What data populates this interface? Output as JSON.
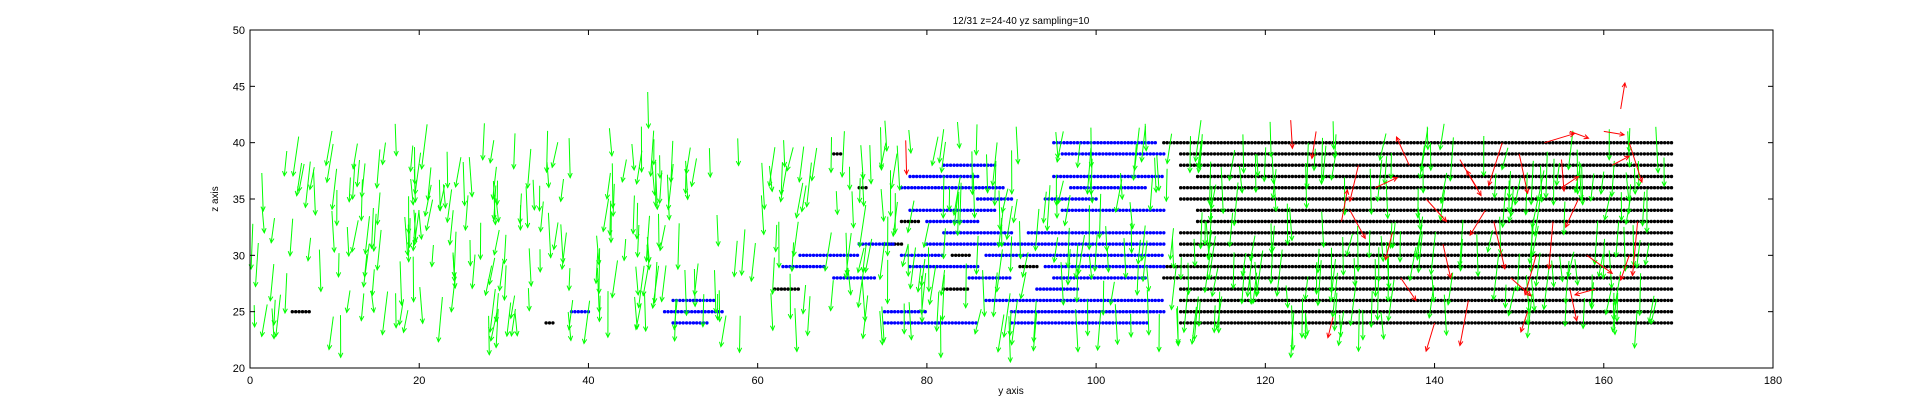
{
  "chart_data": {
    "type": "scatter",
    "subtype": "quiver",
    "title": "12/31 z=24-40 yz sampling=10",
    "xlabel": "y axis",
    "ylabel": "z axis",
    "xlim": [
      0,
      180
    ],
    "ylim": [
      20,
      50
    ],
    "xticks": [
      0,
      20,
      40,
      60,
      80,
      100,
      120,
      140,
      160,
      180
    ],
    "yticks": [
      20,
      25,
      30,
      35,
      40,
      45,
      50
    ],
    "grid": false,
    "colors": {
      "vectors": "#00ff00",
      "highlight_vectors": "#ff0000",
      "points_blue": "#0000ff",
      "points_black": "#000000"
    },
    "z_levels": [
      24,
      25,
      26,
      27,
      28,
      29,
      30,
      31,
      32,
      33,
      34,
      35,
      36,
      37,
      38,
      39,
      40
    ],
    "point_series": [
      {
        "color": "black",
        "segments": [
          {
            "z": 40,
            "y": [
              108,
              168
            ]
          },
          {
            "z": 39,
            "y": [
              110,
              168
            ]
          },
          {
            "z": 38,
            "y": [
              110,
              168
            ]
          },
          {
            "z": 37,
            "y": [
              112,
              168
            ]
          },
          {
            "z": 36,
            "y": [
              110,
              168
            ]
          },
          {
            "z": 35,
            "y": [
              110,
              168
            ]
          },
          {
            "z": 34,
            "y": [
              112,
              168
            ]
          },
          {
            "z": 33,
            "y": [
              112,
              168
            ]
          },
          {
            "z": 32,
            "y": [
              110,
              168
            ]
          },
          {
            "z": 31,
            "y": [
              110,
              168
            ]
          },
          {
            "z": 30,
            "y": [
              110,
              168
            ]
          },
          {
            "z": 29,
            "y": [
              108,
              168
            ]
          },
          {
            "z": 28,
            "y": [
              108,
              168
            ]
          },
          {
            "z": 27,
            "y": [
              110,
              168
            ]
          },
          {
            "z": 26,
            "y": [
              110,
              168
            ]
          },
          {
            "z": 25,
            "y": [
              110,
              168
            ]
          },
          {
            "z": 24,
            "y": [
              110,
              168
            ]
          },
          {
            "z": 39,
            "y": [
              69,
              70
            ]
          },
          {
            "z": 36,
            "y": [
              72,
              73
            ]
          },
          {
            "z": 33,
            "y": [
              77,
              79
            ]
          },
          {
            "z": 31,
            "y": [
              75,
              77
            ]
          },
          {
            "z": 30,
            "y": [
              83,
              85
            ]
          },
          {
            "z": 29,
            "y": [
              91,
              93
            ]
          },
          {
            "z": 27,
            "y": [
              62,
              65
            ]
          },
          {
            "z": 27,
            "y": [
              82,
              85
            ]
          },
          {
            "z": 25,
            "y": [
              5,
              7
            ]
          },
          {
            "z": 24,
            "y": [
              35,
              36
            ]
          }
        ]
      },
      {
        "color": "blue",
        "segments": [
          {
            "z": 40,
            "y": [
              95,
              107
            ]
          },
          {
            "z": 39,
            "y": [
              96,
              108
            ]
          },
          {
            "z": 38,
            "y": [
              82,
              88
            ]
          },
          {
            "z": 37,
            "y": [
              78,
              86
            ]
          },
          {
            "z": 37,
            "y": [
              95,
              108
            ]
          },
          {
            "z": 36,
            "y": [
              77,
              89
            ]
          },
          {
            "z": 36,
            "y": [
              97,
              106
            ]
          },
          {
            "z": 35,
            "y": [
              86,
              90
            ]
          },
          {
            "z": 35,
            "y": [
              94,
              100
            ]
          },
          {
            "z": 34,
            "y": [
              78,
              88
            ]
          },
          {
            "z": 34,
            "y": [
              96,
              108
            ]
          },
          {
            "z": 33,
            "y": [
              80,
              86
            ]
          },
          {
            "z": 32,
            "y": [
              82,
              90
            ]
          },
          {
            "z": 32,
            "y": [
              92,
              108
            ]
          },
          {
            "z": 31,
            "y": [
              72,
              76
            ]
          },
          {
            "z": 31,
            "y": [
              80,
              108
            ]
          },
          {
            "z": 30,
            "y": [
              65,
              72
            ]
          },
          {
            "z": 30,
            "y": [
              77,
              82
            ]
          },
          {
            "z": 30,
            "y": [
              87,
              108
            ]
          },
          {
            "z": 29,
            "y": [
              63,
              68
            ]
          },
          {
            "z": 29,
            "y": [
              78,
              86
            ]
          },
          {
            "z": 29,
            "y": [
              94,
              108
            ]
          },
          {
            "z": 28,
            "y": [
              69,
              74
            ]
          },
          {
            "z": 28,
            "y": [
              85,
              90
            ]
          },
          {
            "z": 28,
            "y": [
              95,
              106
            ]
          },
          {
            "z": 27,
            "y": [
              93,
              98
            ]
          },
          {
            "z": 26,
            "y": [
              50,
              55
            ]
          },
          {
            "z": 26,
            "y": [
              87,
              108
            ]
          },
          {
            "z": 25,
            "y": [
              38,
              40
            ]
          },
          {
            "z": 25,
            "y": [
              49,
              56
            ]
          },
          {
            "z": 25,
            "y": [
              75,
              80
            ]
          },
          {
            "z": 25,
            "y": [
              90,
              108
            ]
          },
          {
            "z": 24,
            "y": [
              50,
              54
            ]
          },
          {
            "z": 24,
            "y": [
              75,
              86
            ]
          },
          {
            "z": 24,
            "y": [
              90,
              106
            ]
          }
        ]
      }
    ],
    "vector_field": {
      "color": "green",
      "approx_count": 600,
      "y_range": [
        0,
        168
      ],
      "z_range": [
        22,
        42
      ],
      "typical_dy": -0.2,
      "typical_dz": -3
    },
    "highlight_vectors": [
      {
        "y": 77.5,
        "z": 40.2,
        "dy": 0.1,
        "dz": -3.0
      },
      {
        "y": 123,
        "z": 42,
        "dy": 0.2,
        "dz": -2.5
      },
      {
        "y": 126,
        "z": 41,
        "dy": -0.5,
        "dz": -2.4
      },
      {
        "y": 129,
        "z": 33,
        "dy": 0.7,
        "dz": 2.8
      },
      {
        "y": 130,
        "z": 34,
        "dy": 1.8,
        "dz": -2.5
      },
      {
        "y": 131,
        "z": 38,
        "dy": -1.0,
        "dz": -3.2
      },
      {
        "y": 133,
        "z": 36,
        "dy": 2.6,
        "dz": 0.9
      },
      {
        "y": 135,
        "z": 32,
        "dy": -0.8,
        "dz": -2.4
      },
      {
        "y": 137,
        "z": 38,
        "dy": -1.5,
        "dz": 2.5
      },
      {
        "y": 139,
        "z": 35,
        "dy": 2.4,
        "dz": -2.0
      },
      {
        "y": 141,
        "z": 31,
        "dy": 0.9,
        "dz": -3.0
      },
      {
        "y": 143,
        "z": 38.5,
        "dy": 2.5,
        "dz": -3.2
      },
      {
        "y": 144,
        "z": 26,
        "dy": -1.0,
        "dz": -4.0
      },
      {
        "y": 146,
        "z": 34,
        "dy": -1.8,
        "dz": -2.2
      },
      {
        "y": 147,
        "z": 33,
        "dy": 1.3,
        "dz": -4.2
      },
      {
        "y": 148,
        "z": 40,
        "dy": -1.6,
        "dz": -3.8
      },
      {
        "y": 149,
        "z": 28,
        "dy": 2.4,
        "dz": -1.6
      },
      {
        "y": 150,
        "z": 39,
        "dy": 1.0,
        "dz": -3.5
      },
      {
        "y": 152,
        "z": 30,
        "dy": -1.3,
        "dz": -3.5
      },
      {
        "y": 153,
        "z": 40,
        "dy": 3.5,
        "dz": 0.8
      },
      {
        "y": 154,
        "z": 33,
        "dy": -0.5,
        "dz": -4.2
      },
      {
        "y": 155,
        "z": 36,
        "dy": 2.0,
        "dz": 1.0
      },
      {
        "y": 156,
        "z": 41,
        "dy": 2.2,
        "dz": -0.6
      },
      {
        "y": 157,
        "z": 35,
        "dy": -1.5,
        "dz": -2.5
      },
      {
        "y": 158,
        "z": 30,
        "dy": 3.0,
        "dz": -1.6
      },
      {
        "y": 159,
        "z": 27,
        "dy": -2.4,
        "dz": -0.5
      },
      {
        "y": 160,
        "z": 41,
        "dy": 2.4,
        "dz": -0.3
      },
      {
        "y": 161,
        "z": 38,
        "dy": 2.0,
        "dz": 0.8
      },
      {
        "y": 162,
        "z": 43,
        "dy": 0.5,
        "dz": 2.3
      },
      {
        "y": 163,
        "z": 40,
        "dy": 1.5,
        "dz": -3.5
      },
      {
        "y": 164,
        "z": 33,
        "dy": -0.6,
        "dz": -4.8
      },
      {
        "y": 145,
        "z": 36,
        "dy": -1.2,
        "dz": 1.5
      },
      {
        "y": 136,
        "z": 28,
        "dy": 1.8,
        "dz": -2.0
      },
      {
        "y": 151,
        "z": 25,
        "dy": -0.8,
        "dz": -1.8
      },
      {
        "y": 140,
        "z": 24,
        "dy": -1.0,
        "dz": -2.5
      },
      {
        "y": 156,
        "z": 27,
        "dy": 0.8,
        "dz": -2.8
      },
      {
        "y": 128,
        "z": 24.5,
        "dy": -0.6,
        "dz": -1.8
      },
      {
        "y": 163,
        "z": 30,
        "dy": -1.0,
        "dz": -2.2
      },
      {
        "y": 155,
        "z": 38.5,
        "dy": 0.3,
        "dz": -2.8
      }
    ]
  }
}
